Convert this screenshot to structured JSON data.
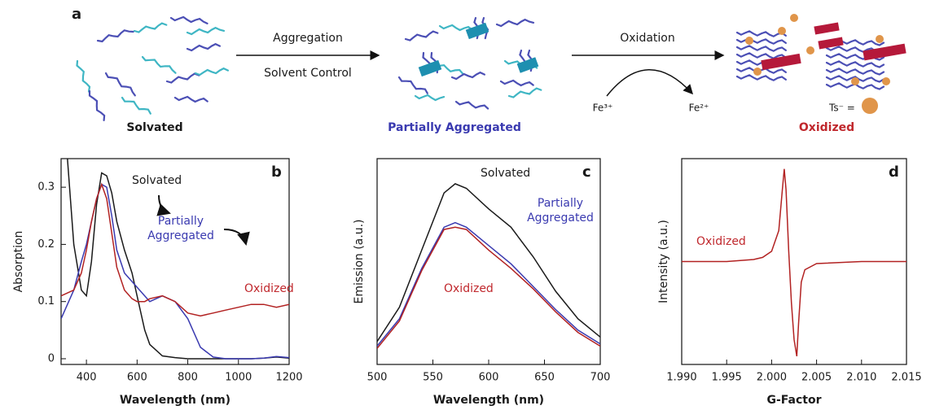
{
  "scheme": {
    "panel": "a",
    "step1": "Aggregation",
    "step1_sub": "Solvent Control",
    "step2": "Oxidation",
    "reagent_in": "Fe³⁺",
    "reagent_out": "Fe²⁺",
    "dopant": "Ts⁻ =",
    "state1": "Solvated",
    "state2": "Partially Aggregated",
    "state3": "Oxidized"
  },
  "chart_data": [
    {
      "type": "line",
      "panel": "b",
      "xlabel": "Wavelength (nm)",
      "ylabel": "Absorption",
      "x": [
        300,
        350,
        380,
        400,
        420,
        440,
        460,
        480,
        500,
        520,
        550,
        580,
        600,
        630,
        650,
        700,
        750,
        800,
        850,
        900,
        950,
        1000,
        1050,
        1100,
        1150,
        1200
      ],
      "series": [
        {
          "name": "Solvated",
          "color": "#1a1a1a",
          "values": [
            0.5,
            0.2,
            0.12,
            0.11,
            0.17,
            0.27,
            0.325,
            0.32,
            0.29,
            0.24,
            0.19,
            0.15,
            0.11,
            0.05,
            0.025,
            0.005,
            0.002,
            0,
            0,
            0,
            0,
            0,
            0,
            0.001,
            0.003,
            0.001
          ]
        },
        {
          "name": "Partially Aggregated",
          "color": "#3a3ab0",
          "values": [
            0.07,
            0.12,
            0.17,
            0.2,
            0.24,
            0.28,
            0.305,
            0.3,
            0.25,
            0.19,
            0.15,
            0.135,
            0.125,
            0.11,
            0.1,
            0.11,
            0.1,
            0.07,
            0.02,
            0.003,
            0,
            0,
            0,
            0.001,
            0.004,
            0.002
          ]
        },
        {
          "name": "Oxidized",
          "color": "#b22222",
          "values": [
            0.11,
            0.12,
            0.15,
            0.19,
            0.24,
            0.28,
            0.305,
            0.28,
            0.22,
            0.16,
            0.12,
            0.105,
            0.1,
            0.1,
            0.105,
            0.11,
            0.1,
            0.08,
            0.075,
            0.08,
            0.085,
            0.09,
            0.095,
            0.095,
            0.09,
            0.095
          ]
        }
      ],
      "xlim": [
        300,
        1200
      ],
      "xticks": [
        400,
        600,
        800,
        1000,
        1200
      ],
      "ylim": [
        -0.01,
        0.35
      ],
      "yticks": [
        0,
        0.1,
        0.2,
        0.3
      ],
      "annotations": [
        {
          "text": "Solvated",
          "color": "#1a1a1a"
        },
        {
          "text": "Partially Aggregated",
          "color": "#3a3ab0"
        },
        {
          "text": "Oxidized",
          "color": "#c0282d"
        }
      ]
    },
    {
      "type": "line",
      "panel": "c",
      "xlabel": "Wavelength (nm)",
      "ylabel": "Emission (a.u.)",
      "x": [
        500,
        520,
        540,
        560,
        570,
        580,
        600,
        620,
        640,
        660,
        680,
        700
      ],
      "series": [
        {
          "name": "Solvated",
          "color": "#1a1a1a",
          "values": [
            0.1,
            0.25,
            0.5,
            0.75,
            0.79,
            0.77,
            0.68,
            0.6,
            0.47,
            0.32,
            0.2,
            0.12
          ]
        },
        {
          "name": "Partially Aggregated",
          "color": "#3a3ab0",
          "values": [
            0.08,
            0.2,
            0.42,
            0.6,
            0.62,
            0.6,
            0.52,
            0.44,
            0.34,
            0.24,
            0.15,
            0.09
          ]
        },
        {
          "name": "Oxidized",
          "color": "#b22222",
          "values": [
            0.07,
            0.19,
            0.41,
            0.59,
            0.6,
            0.59,
            0.5,
            0.42,
            0.33,
            0.23,
            0.14,
            0.08
          ]
        }
      ],
      "xlim": [
        500,
        700
      ],
      "xticks": [
        500,
        550,
        600,
        650,
        700
      ],
      "ylim": [
        0,
        0.9
      ],
      "annotations": [
        {
          "text": "Solvated",
          "color": "#1a1a1a"
        },
        {
          "text": "Partially Aggregated",
          "color": "#3a3ab0"
        },
        {
          "text": "Oxidized",
          "color": "#c0282d"
        }
      ]
    },
    {
      "type": "line",
      "panel": "d",
      "xlabel": "G-Factor",
      "ylabel": "Intensity (a.u.)",
      "x": [
        1.99,
        1.995,
        1.998,
        1.999,
        2.0,
        2.0008,
        2.0012,
        2.0014,
        2.0016,
        2.0019,
        2.0022,
        2.0025,
        2.0028,
        2.003,
        2.0033,
        2.0037,
        2.005,
        2.01,
        2.015
      ],
      "series": [
        {
          "name": "Oxidized",
          "color": "#b22222",
          "values": [
            0.5,
            0.5,
            0.51,
            0.52,
            0.55,
            0.65,
            0.85,
            0.95,
            0.85,
            0.55,
            0.3,
            0.12,
            0.04,
            0.2,
            0.4,
            0.46,
            0.49,
            0.5,
            0.5
          ]
        }
      ],
      "xlim": [
        1.99,
        2.015
      ],
      "xticks": [
        {
          "value": 1.99,
          "label": "1.990"
        },
        {
          "value": 1.995,
          "label": "1.995"
        },
        {
          "value": 2.0,
          "label": "2.000"
        },
        {
          "value": 2.005,
          "label": "2.005"
        },
        {
          "value": 2.01,
          "label": "2.010"
        },
        {
          "value": 2.015,
          "label": "2.015"
        }
      ],
      "ylim": [
        0,
        1
      ],
      "annotations": [
        {
          "text": "Oxidized",
          "color": "#c0282d"
        }
      ]
    }
  ]
}
